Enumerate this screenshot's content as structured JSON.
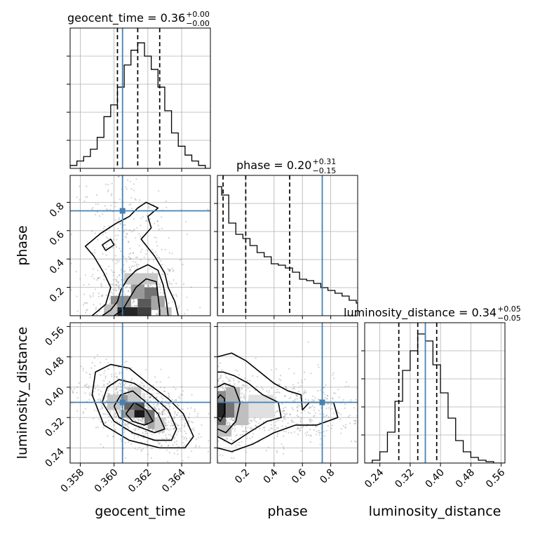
{
  "chart_data": {
    "type": "corner",
    "parameters": [
      {
        "name": "geocent_time",
        "label": "geocent_time",
        "range": [
          0.3574,
          0.3657
        ],
        "ticks": [
          0.358,
          0.36,
          0.362,
          0.364
        ],
        "tick_labels": [
          "0.358",
          "0.360",
          "0.362",
          "0.364"
        ],
        "quantiles": [
          0.3602,
          0.3614,
          0.3627
        ],
        "truth": 0.3605
      },
      {
        "name": "phase",
        "label": "phase",
        "range": [
          0.0,
          0.99
        ],
        "ticks": [
          0.2,
          0.4,
          0.6,
          0.8
        ],
        "tick_labels": [
          "0.2",
          "0.4",
          "0.6",
          "0.8"
        ],
        "quantiles": [
          0.04,
          0.2,
          0.51
        ],
        "truth": 0.74
      },
      {
        "name": "luminosity_distance",
        "label": "luminosity_distance",
        "range": [
          0.2,
          0.57
        ],
        "ticks": [
          0.24,
          0.32,
          0.4,
          0.48,
          0.56
        ],
        "tick_labels": [
          "0.24",
          "0.32",
          "0.40",
          "0.48",
          "0.56"
        ],
        "quantiles": [
          0.29,
          0.34,
          0.39
        ],
        "truth": 0.36
      }
    ],
    "titles": [
      {
        "text": "geocent_time = 0.36",
        "sup": "+0.00",
        "sub": "−0.00"
      },
      {
        "text": "phase = 0.20",
        "sup": "+0.31",
        "sub": "−0.15"
      },
      {
        "text": "luminosity_distance = 0.34",
        "sup": "+0.05",
        "sub": "−0.05"
      }
    ],
    "histograms": {
      "geocent_time": {
        "edges": [
          0.3574,
          0.3578,
          0.3582,
          0.3586,
          0.359,
          0.3594,
          0.3598,
          0.3602,
          0.3606,
          0.361,
          0.3614,
          0.3618,
          0.3622,
          0.3626,
          0.363,
          0.3634,
          0.3638,
          0.3642,
          0.3646,
          0.365,
          0.3654,
          0.3657
        ],
        "counts": [
          2,
          5,
          8,
          13,
          21,
          35,
          43,
          55,
          70,
          80,
          85,
          76,
          67,
          55,
          39,
          24,
          15,
          9,
          5,
          2,
          0
        ],
        "ymax": 95
      },
      "phase": {
        "edges": [
          0.0,
          0.03,
          0.08,
          0.13,
          0.18,
          0.23,
          0.28,
          0.33,
          0.38,
          0.43,
          0.48,
          0.53,
          0.58,
          0.63,
          0.68,
          0.73,
          0.78,
          0.83,
          0.88,
          0.93,
          0.98,
          0.99
        ],
        "counts": [
          92,
          86,
          66,
          58,
          55,
          50,
          45,
          42,
          37,
          36,
          34,
          31,
          26,
          25,
          23,
          20,
          18,
          16,
          14,
          11,
          9
        ],
        "ymax": 100
      },
      "luminosity_distance": {
        "edges": [
          0.2,
          0.22,
          0.24,
          0.26,
          0.28,
          0.3,
          0.32,
          0.34,
          0.36,
          0.38,
          0.4,
          0.42,
          0.44,
          0.46,
          0.48,
          0.5,
          0.52,
          0.54,
          0.57
        ],
        "counts": [
          0,
          2,
          8,
          22,
          44,
          66,
          80,
          92,
          87,
          70,
          50,
          32,
          16,
          8,
          4,
          2,
          1,
          0
        ],
        "ymax": 100
      }
    },
    "joint": [
      {
        "x": "geocent_time",
        "y": "phase",
        "xr": [
          0.3574,
          0.3657
        ],
        "yr": [
          0.0,
          0.99
        ],
        "truth": [
          0.3605,
          0.74
        ],
        "samples": [
          {
            "mx": 0.3612,
            "my": 0.1,
            "sx": 0.0014,
            "sy": 0.15,
            "n": 480,
            "d": -0.0013
          },
          {
            "mx": 0.3605,
            "my": 0.55,
            "sx": 0.0016,
            "sy": 0.25,
            "n": 260,
            "d": 0.0
          }
        ],
        "hist": [
          {
            "x0": 0.3602,
            "x1": 0.3614,
            "y0": 0.0,
            "y1": 0.06,
            "c": 0.85
          },
          {
            "x0": 0.3614,
            "x1": 0.3622,
            "y0": 0.0,
            "y1": 0.06,
            "c": 0.75
          },
          {
            "x0": 0.3614,
            "x1": 0.3622,
            "y0": 0.06,
            "y1": 0.12,
            "c": 0.65
          },
          {
            "x0": 0.3618,
            "x1": 0.3626,
            "y0": 0.12,
            "y1": 0.2,
            "c": 0.55
          },
          {
            "x0": 0.3598,
            "x1": 0.361,
            "y0": 0.06,
            "y1": 0.14,
            "c": 0.45
          },
          {
            "x0": 0.361,
            "x1": 0.3618,
            "y0": 0.12,
            "y1": 0.22,
            "c": 0.4
          },
          {
            "x0": 0.3622,
            "x1": 0.363,
            "y0": 0.04,
            "y1": 0.14,
            "c": 0.35
          },
          {
            "x0": 0.3606,
            "x1": 0.3626,
            "y0": 0.22,
            "y1": 0.3,
            "c": 0.22
          },
          {
            "x0": 0.3594,
            "x1": 0.3602,
            "y0": 0.0,
            "y1": 0.08,
            "c": 0.25
          },
          {
            "x0": 0.3626,
            "x1": 0.3634,
            "y0": 0.0,
            "y1": 0.06,
            "c": 0.25
          }
        ],
        "contours": [
          [
            [
              0.36,
              0.0
            ],
            [
              0.3605,
              0.04
            ],
            [
              0.3609,
              0.12
            ],
            [
              0.3613,
              0.2
            ],
            [
              0.3619,
              0.26
            ],
            [
              0.3625,
              0.24
            ],
            [
              0.3626,
              0.14
            ],
            [
              0.3627,
              0.04
            ],
            [
              0.3627,
              0.0
            ]
          ],
          [
            [
              0.3593,
              0.0
            ],
            [
              0.3598,
              0.04
            ],
            [
              0.3602,
              0.1
            ],
            [
              0.3604,
              0.18
            ],
            [
              0.3608,
              0.26
            ],
            [
              0.3613,
              0.32
            ],
            [
              0.362,
              0.36
            ],
            [
              0.3626,
              0.32
            ],
            [
              0.3629,
              0.22
            ],
            [
              0.3631,
              0.1
            ],
            [
              0.3632,
              0.0
            ]
          ],
          [
            [
              0.3587,
              0.0
            ],
            [
              0.3595,
              0.08
            ],
            [
              0.3598,
              0.2
            ],
            [
              0.3594,
              0.3
            ],
            [
              0.3588,
              0.42
            ],
            [
              0.3583,
              0.49
            ],
            [
              0.3592,
              0.58
            ],
            [
              0.3601,
              0.65
            ],
            [
              0.3609,
              0.7
            ],
            [
              0.3614,
              0.76
            ],
            [
              0.3619,
              0.8
            ],
            [
              0.3626,
              0.76
            ],
            [
              0.362,
              0.7
            ],
            [
              0.3622,
              0.62
            ],
            [
              0.3616,
              0.54
            ],
            [
              0.3624,
              0.42
            ],
            [
              0.363,
              0.3
            ],
            [
              0.3632,
              0.2
            ],
            [
              0.3636,
              0.1
            ],
            [
              0.3638,
              0.0
            ]
          ],
          [
            [
              0.3595,
              0.46
            ],
            [
              0.36,
              0.5
            ],
            [
              0.3598,
              0.54
            ],
            [
              0.3593,
              0.5
            ],
            [
              0.3595,
              0.46
            ]
          ]
        ]
      },
      {
        "x": "geocent_time",
        "y": "luminosity_distance",
        "xr": [
          0.3574,
          0.3657
        ],
        "yr": [
          0.2,
          0.57
        ],
        "truth": [
          0.3605,
          0.36
        ],
        "samples": [
          {
            "mx": 0.3614,
            "my": 0.34,
            "sx": 0.0016,
            "sy": 0.05,
            "n": 900,
            "d": -0.55
          }
        ],
        "hist": [
          {
            "x0": 0.3612,
            "x1": 0.362,
            "y0": 0.32,
            "y1": 0.34,
            "c": 0.9
          },
          {
            "x0": 0.3606,
            "x1": 0.3612,
            "y0": 0.34,
            "y1": 0.36,
            "c": 0.6
          },
          {
            "x0": 0.3612,
            "x1": 0.3618,
            "y0": 0.34,
            "y1": 0.36,
            "c": 0.65
          },
          {
            "x0": 0.3618,
            "x1": 0.3624,
            "y0": 0.3,
            "y1": 0.34,
            "c": 0.55
          },
          {
            "x0": 0.3602,
            "x1": 0.361,
            "y0": 0.36,
            "y1": 0.38,
            "c": 0.4
          },
          {
            "x0": 0.3604,
            "x1": 0.3612,
            "y0": 0.32,
            "y1": 0.34,
            "c": 0.4
          },
          {
            "x0": 0.362,
            "x1": 0.3626,
            "y0": 0.29,
            "y1": 0.31,
            "c": 0.35
          },
          {
            "x0": 0.3596,
            "x1": 0.3604,
            "y0": 0.34,
            "y1": 0.38,
            "c": 0.22
          },
          {
            "x0": 0.3608,
            "x1": 0.3616,
            "y0": 0.36,
            "y1": 0.4,
            "c": 0.22
          },
          {
            "x0": 0.3624,
            "x1": 0.363,
            "y0": 0.28,
            "y1": 0.32,
            "c": 0.18
          }
        ],
        "contours": [
          [
            [
              0.3607,
              0.33
            ],
            [
              0.3612,
              0.36
            ],
            [
              0.3619,
              0.34
            ],
            [
              0.3623,
              0.31
            ],
            [
              0.3618,
              0.3
            ],
            [
              0.3611,
              0.31
            ],
            [
              0.3607,
              0.33
            ]
          ],
          [
            [
              0.36,
              0.35
            ],
            [
              0.3604,
              0.38
            ],
            [
              0.3611,
              0.39
            ],
            [
              0.3619,
              0.36
            ],
            [
              0.3626,
              0.33
            ],
            [
              0.363,
              0.29
            ],
            [
              0.3624,
              0.28
            ],
            [
              0.3612,
              0.3
            ],
            [
              0.3603,
              0.32
            ],
            [
              0.36,
              0.35
            ]
          ],
          [
            [
              0.3593,
              0.36
            ],
            [
              0.3596,
              0.4
            ],
            [
              0.3603,
              0.42
            ],
            [
              0.3612,
              0.41
            ],
            [
              0.3622,
              0.38
            ],
            [
              0.3632,
              0.34
            ],
            [
              0.3637,
              0.29
            ],
            [
              0.3634,
              0.26
            ],
            [
              0.3624,
              0.26
            ],
            [
              0.3611,
              0.28
            ],
            [
              0.36,
              0.31
            ],
            [
              0.3593,
              0.36
            ]
          ],
          [
            [
              0.3587,
              0.38
            ],
            [
              0.3589,
              0.44
            ],
            [
              0.3598,
              0.46
            ],
            [
              0.3609,
              0.45
            ],
            [
              0.362,
              0.41
            ],
            [
              0.3632,
              0.37
            ],
            [
              0.3641,
              0.33
            ],
            [
              0.3647,
              0.27
            ],
            [
              0.3642,
              0.24
            ],
            [
              0.3627,
              0.24
            ],
            [
              0.3609,
              0.26
            ],
            [
              0.3594,
              0.3
            ],
            [
              0.3587,
              0.38
            ]
          ]
        ]
      },
      {
        "x": "phase",
        "y": "luminosity_distance",
        "xr": [
          0.0,
          0.99
        ],
        "yr": [
          0.2,
          0.57
        ],
        "truth": [
          0.74,
          0.36
        ],
        "samples": [
          {
            "mx": 0.08,
            "my": 0.34,
            "sx": 0.12,
            "sy": 0.05,
            "n": 500,
            "d": 0.0
          },
          {
            "mx": 0.55,
            "my": 0.34,
            "sx": 0.25,
            "sy": 0.05,
            "n": 400,
            "d": 0.0
          }
        ],
        "hist": [
          {
            "x0": 0.0,
            "x1": 0.06,
            "y0": 0.32,
            "y1": 0.36,
            "c": 0.85
          },
          {
            "x0": 0.0,
            "x1": 0.06,
            "y0": 0.3,
            "y1": 0.32,
            "c": 0.55
          },
          {
            "x0": 0.06,
            "x1": 0.12,
            "y0": 0.32,
            "y1": 0.36,
            "c": 0.55
          },
          {
            "x0": 0.0,
            "x1": 0.06,
            "y0": 0.36,
            "y1": 0.39,
            "c": 0.45
          },
          {
            "x0": 0.06,
            "x1": 0.16,
            "y0": 0.36,
            "y1": 0.4,
            "c": 0.3
          },
          {
            "x0": 0.12,
            "x1": 0.22,
            "y0": 0.3,
            "y1": 0.36,
            "c": 0.25
          },
          {
            "x0": 0.22,
            "x1": 0.4,
            "y0": 0.32,
            "y1": 0.38,
            "c": 0.12
          },
          {
            "x0": 0.0,
            "x1": 0.1,
            "y0": 0.27,
            "y1": 0.3,
            "c": 0.25
          }
        ],
        "contours": [
          [
            [
              0.0,
              0.32
            ],
            [
              0.02,
              0.31
            ],
            [
              0.05,
              0.33
            ],
            [
              0.05,
              0.37
            ],
            [
              0.02,
              0.38
            ],
            [
              0.0,
              0.37
            ]
          ],
          [
            [
              0.0,
              0.29
            ],
            [
              0.06,
              0.28
            ],
            [
              0.13,
              0.31
            ],
            [
              0.16,
              0.36
            ],
            [
              0.12,
              0.4
            ],
            [
              0.05,
              0.41
            ],
            [
              0.0,
              0.4
            ]
          ],
          [
            [
              0.0,
              0.27
            ],
            [
              0.1,
              0.25
            ],
            [
              0.22,
              0.28
            ],
            [
              0.35,
              0.31
            ],
            [
              0.45,
              0.32
            ],
            [
              0.43,
              0.36
            ],
            [
              0.32,
              0.38
            ],
            [
              0.22,
              0.41
            ],
            [
              0.12,
              0.43
            ],
            [
              0.04,
              0.44
            ],
            [
              0.0,
              0.44
            ]
          ],
          [
            [
              0.0,
              0.24
            ],
            [
              0.1,
              0.23
            ],
            [
              0.25,
              0.25
            ],
            [
              0.4,
              0.28
            ],
            [
              0.55,
              0.3
            ],
            [
              0.7,
              0.3
            ],
            [
              0.85,
              0.32
            ],
            [
              0.82,
              0.36
            ],
            [
              0.65,
              0.36
            ],
            [
              0.6,
              0.34
            ],
            [
              0.59,
              0.38
            ],
            [
              0.5,
              0.39
            ],
            [
              0.4,
              0.41
            ],
            [
              0.3,
              0.44
            ],
            [
              0.2,
              0.47
            ],
            [
              0.1,
              0.49
            ],
            [
              0.0,
              0.48
            ]
          ]
        ]
      }
    ],
    "colors": {
      "truth": "#4682b4",
      "hist": "#000000",
      "grid": "#b0b0b0",
      "samples": "#808080"
    }
  }
}
